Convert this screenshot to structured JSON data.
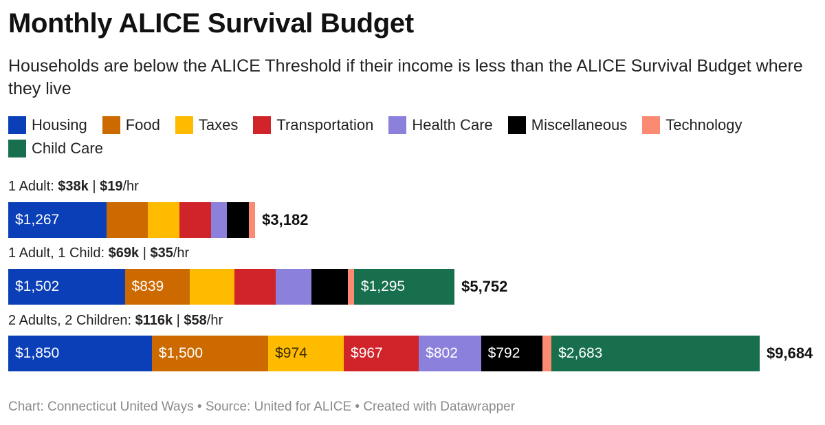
{
  "title": "Monthly ALICE Survival Budget",
  "subtitle": "Households are below the ALICE Threshold if their income is less than the ALICE Survival Budget where they live",
  "footer": "Chart: Connecticut United Ways • Source: United for ALICE • Created with Datawrapper",
  "colors": {
    "Housing": "#0a3fb8",
    "Food": "#cc6a00",
    "Taxes": "#ffbb00",
    "Transportation": "#d1232a",
    "Health Care": "#8b80dc",
    "Miscellaneous": "#000000",
    "Technology": "#fa8a72",
    "Child Care": "#176f4e"
  },
  "chart_data": {
    "type": "bar",
    "orientation": "horizontal",
    "stacked": true,
    "legend": [
      "Housing",
      "Food",
      "Taxes",
      "Transportation",
      "Health Care",
      "Miscellaneous",
      "Technology",
      "Child Care"
    ],
    "legend_position": "top",
    "xlim": [
      0,
      9684
    ],
    "grid": false,
    "rows": [
      {
        "label_parts": [
          "1 Adult: ",
          "$38k",
          " | ",
          "$19",
          "/hr"
        ],
        "total_label": "$3,182",
        "segments": [
          {
            "name": "Housing",
            "value": 1267,
            "label": "$1,267"
          },
          {
            "name": "Food",
            "value": 535,
            "label": ""
          },
          {
            "name": "Taxes",
            "value": 405,
            "label": ""
          },
          {
            "name": "Transportation",
            "value": 405,
            "label": ""
          },
          {
            "name": "Health Care",
            "value": 205,
            "label": ""
          },
          {
            "name": "Miscellaneous",
            "value": 285,
            "label": ""
          },
          {
            "name": "Technology",
            "value": 80,
            "label": ""
          }
        ]
      },
      {
        "label_parts": [
          "1 Adult, 1 Child: ",
          "$69k",
          " | ",
          "$35",
          "/hr"
        ],
        "total_label": "$5,752",
        "segments": [
          {
            "name": "Housing",
            "value": 1502,
            "label": "$1,502"
          },
          {
            "name": "Food",
            "value": 839,
            "label": "$839"
          },
          {
            "name": "Taxes",
            "value": 570,
            "label": ""
          },
          {
            "name": "Transportation",
            "value": 540,
            "label": ""
          },
          {
            "name": "Health Care",
            "value": 455,
            "label": ""
          },
          {
            "name": "Miscellaneous",
            "value": 470,
            "label": ""
          },
          {
            "name": "Technology",
            "value": 80,
            "label": ""
          },
          {
            "name": "Child Care",
            "value": 1295,
            "label": "$1,295"
          }
        ]
      },
      {
        "label_parts": [
          "2 Adults, 2 Children: ",
          "$116k",
          " | ",
          "$58",
          "/hr"
        ],
        "total_label": "$9,684",
        "segments": [
          {
            "name": "Housing",
            "value": 1850,
            "label": "$1,850"
          },
          {
            "name": "Food",
            "value": 1500,
            "label": "$1,500"
          },
          {
            "name": "Taxes",
            "value": 974,
            "label": "$974"
          },
          {
            "name": "Transportation",
            "value": 967,
            "label": "$967"
          },
          {
            "name": "Health Care",
            "value": 802,
            "label": "$802"
          },
          {
            "name": "Miscellaneous",
            "value": 792,
            "label": "$792"
          },
          {
            "name": "Technology",
            "value": 116,
            "label": ""
          },
          {
            "name": "Child Care",
            "value": 2683,
            "label": "$2,683"
          }
        ]
      }
    ]
  }
}
